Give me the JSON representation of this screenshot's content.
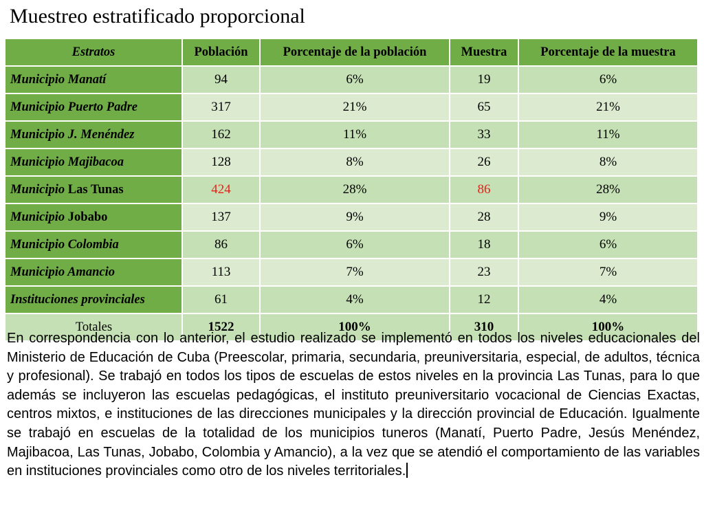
{
  "title": "Muestreo estratificado proporcional",
  "table": {
    "headers": {
      "strata": "Estratos",
      "population": "Población",
      "population_pct": "Porcentaje de la población",
      "sample": "Muestra",
      "sample_pct": "Porcentaje de la muestra"
    },
    "rows": [
      {
        "prefix": "Municipio Manatí",
        "name": "",
        "population": "94",
        "population_pct": "6%",
        "sample": "19",
        "sample_pct": "6%"
      },
      {
        "prefix": "Municipio Puerto Padre",
        "name": "",
        "population": "317",
        "population_pct": "21%",
        "sample": "65",
        "sample_pct": "21%"
      },
      {
        "prefix": "Municipio J. Menéndez",
        "name": "",
        "population": "162",
        "population_pct": "11%",
        "sample": "33",
        "sample_pct": "11%"
      },
      {
        "prefix": "Municipio Majibacoa",
        "name": "",
        "population": "128",
        "population_pct": "8%",
        "sample": "26",
        "sample_pct": "8%"
      },
      {
        "prefix": "Municipio",
        "name": " Las Tunas",
        "population": "424",
        "population_pct": "28%",
        "sample": "86",
        "sample_pct": "28%"
      },
      {
        "prefix": "Municipio",
        "name": " Jobabo",
        "population": "137",
        "population_pct": "9%",
        "sample": "28",
        "sample_pct": "9%"
      },
      {
        "prefix": "Municipio Colombia",
        "name": "",
        "population": "86",
        "population_pct": "6%",
        "sample": "18",
        "sample_pct": "6%"
      },
      {
        "prefix": "Municipio Amancio",
        "name": "",
        "population": "113",
        "population_pct": "7%",
        "sample": "23",
        "sample_pct": "7%"
      },
      {
        "prefix": "Instituciones provinciales",
        "name": "",
        "population": "61",
        "population_pct": "4%",
        "sample": "12",
        "sample_pct": "4%"
      }
    ],
    "totals": {
      "label": "Totales",
      "population": "1522",
      "population_pct": "100%",
      "sample": "310",
      "sample_pct": "100%"
    },
    "highlight_color": "#e3241b"
  },
  "paragraph": "En correspondencia con lo anterior, el estudio realizado se implementó en todos los niveles educacionales del Ministerio de Educación de Cuba (Preescolar, primaria, secundaria, preuniversitaria, especial, de adultos, técnica y profesional). Se trabajó en todos los tipos de escuelas de estos niveles en la provincia Las Tunas, para lo que además se incluyeron las escuelas pedagógicas, el instituto preuniversitario vocacional de Ciencias Exactas, centros mixtos, e instituciones de las direcciones municipales y la dirección provincial de Educación. Igualmente se trabajó en escuelas de la totalidad de los municipios tuneros (Manatí, Puerto Padre, Jesús Menéndez, Majibacoa, Las Tunas, Jobabo, Colombia y Amancio), a la vez que se atendió el comportamiento de las variables en instituciones provinciales como otro de los niveles territoriales."
}
